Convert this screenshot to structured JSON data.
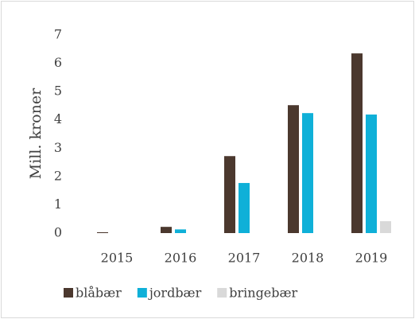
{
  "chart_data": {
    "type": "bar",
    "y_label": "Mill. kroner",
    "categories": [
      "2015",
      "2016",
      "2017",
      "2018",
      "2019"
    ],
    "series": [
      {
        "name": "blåbær",
        "color": "#4b382e",
        "values": [
          0.03,
          0.22,
          2.72,
          4.52,
          6.35
        ]
      },
      {
        "name": "jordbær",
        "color": "#0fb0d8",
        "values": [
          0,
          0.13,
          1.77,
          4.24,
          4.19
        ]
      },
      {
        "name": "bringebær",
        "color": "#d9d9d9",
        "values": [
          0,
          0,
          0,
          0,
          0.42
        ]
      }
    ],
    "ylim": [
      0,
      7
    ],
    "yticks": [
      0,
      1,
      2,
      3,
      4,
      5,
      6,
      7
    ],
    "grid": false,
    "legend": "bottom"
  }
}
